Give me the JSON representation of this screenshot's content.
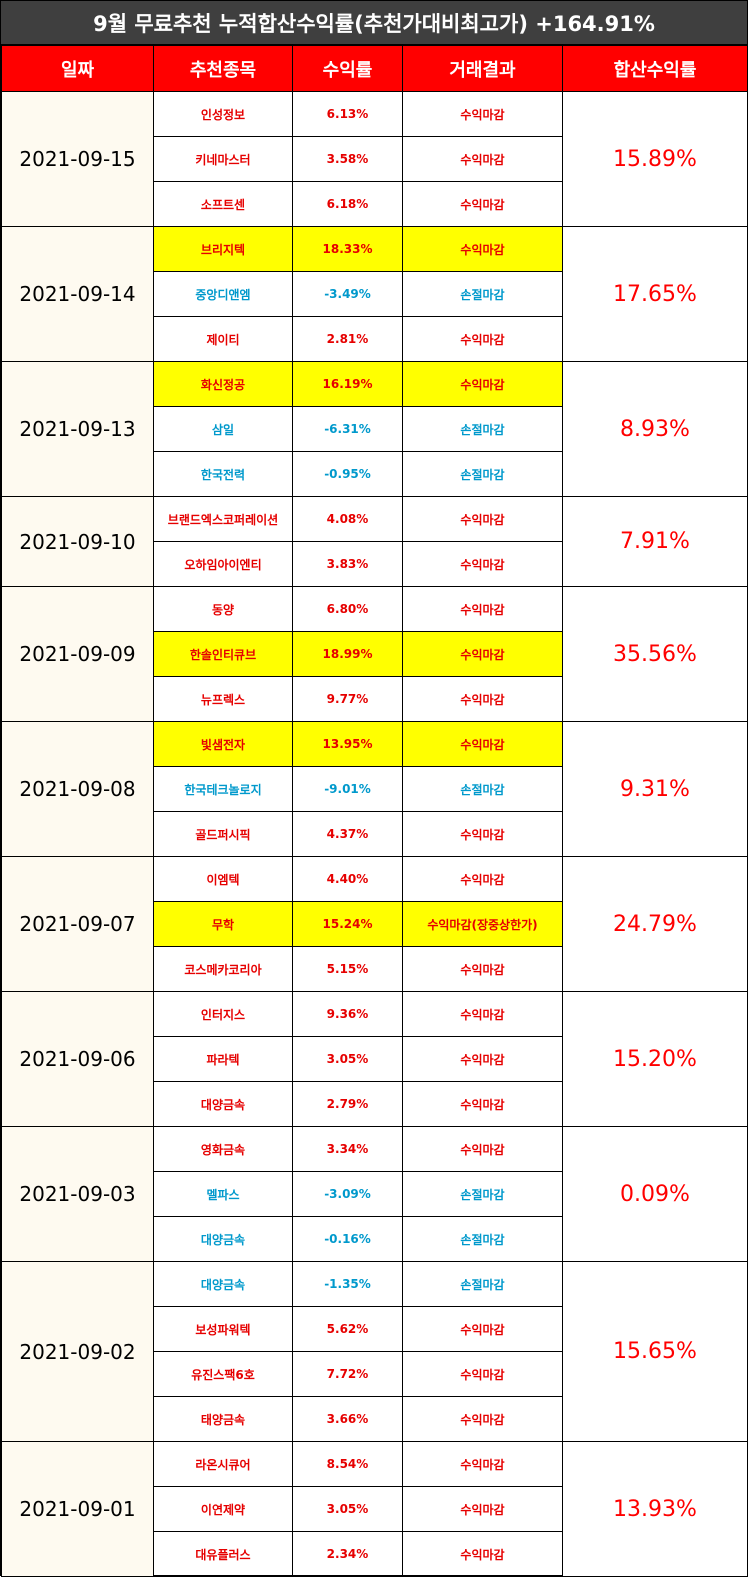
{
  "title": "9월 무료추천 누적합산수익률(추천가대비최고가) +164.91%",
  "headers": [
    "일짜",
    "추천종목",
    "수익률",
    "거래결과",
    "합산수익률"
  ],
  "colors": {
    "title_bg": "#3f3f3f",
    "header_bg": "#ff0000",
    "highlight": "#ffff00",
    "profit": "#e60000",
    "loss": "#0099cc",
    "date_bg": "#fefaf0"
  },
  "groups": [
    {
      "date": "2021-09-15",
      "total": "15.89%",
      "rows": [
        {
          "stock": "인성정보",
          "return": "6.13%",
          "result": "수익마감",
          "type": "pos",
          "highlight": false
        },
        {
          "stock": "키네마스터",
          "return": "3.58%",
          "result": "수익마감",
          "type": "pos",
          "highlight": false
        },
        {
          "stock": "소프트센",
          "return": "6.18%",
          "result": "수익마감",
          "type": "pos",
          "highlight": false
        }
      ]
    },
    {
      "date": "2021-09-14",
      "total": "17.65%",
      "rows": [
        {
          "stock": "브리지텍",
          "return": "18.33%",
          "result": "수익마감",
          "type": "pos",
          "highlight": true
        },
        {
          "stock": "중앙디앤엠",
          "return": "-3.49%",
          "result": "손절마감",
          "type": "neg",
          "highlight": false
        },
        {
          "stock": "제이티",
          "return": "2.81%",
          "result": "수익마감",
          "type": "pos",
          "highlight": false
        }
      ]
    },
    {
      "date": "2021-09-13",
      "total": "8.93%",
      "rows": [
        {
          "stock": "화신정공",
          "return": "16.19%",
          "result": "수익마감",
          "type": "pos",
          "highlight": true
        },
        {
          "stock": "삼일",
          "return": "-6.31%",
          "result": "손절마감",
          "type": "neg",
          "highlight": false
        },
        {
          "stock": "한국전력",
          "return": "-0.95%",
          "result": "손절마감",
          "type": "neg",
          "highlight": false
        }
      ]
    },
    {
      "date": "2021-09-10",
      "total": "7.91%",
      "rows": [
        {
          "stock": "브랜드엑스코퍼레이션",
          "return": "4.08%",
          "result": "수익마감",
          "type": "pos",
          "highlight": false
        },
        {
          "stock": "오하임아이엔티",
          "return": "3.83%",
          "result": "수익마감",
          "type": "pos",
          "highlight": false
        }
      ]
    },
    {
      "date": "2021-09-09",
      "total": "35.56%",
      "rows": [
        {
          "stock": "동양",
          "return": "6.80%",
          "result": "수익마감",
          "type": "pos",
          "highlight": false
        },
        {
          "stock": "한솔인티큐브",
          "return": "18.99%",
          "result": "수익마감",
          "type": "pos",
          "highlight": true
        },
        {
          "stock": "뉴프렉스",
          "return": "9.77%",
          "result": "수익마감",
          "type": "pos",
          "highlight": false
        }
      ]
    },
    {
      "date": "2021-09-08",
      "total": "9.31%",
      "rows": [
        {
          "stock": "빛샘전자",
          "return": "13.95%",
          "result": "수익마감",
          "type": "pos",
          "highlight": true
        },
        {
          "stock": "한국테크놀로지",
          "return": "-9.01%",
          "result": "손절마감",
          "type": "neg",
          "highlight": false
        },
        {
          "stock": "골드퍼시픽",
          "return": "4.37%",
          "result": "수익마감",
          "type": "pos",
          "highlight": false
        }
      ]
    },
    {
      "date": "2021-09-07",
      "total": "24.79%",
      "rows": [
        {
          "stock": "이엠텍",
          "return": "4.40%",
          "result": "수익마감",
          "type": "pos",
          "highlight": false
        },
        {
          "stock": "무학",
          "return": "15.24%",
          "result": "수익마감(장중상한가)",
          "type": "pos",
          "highlight": true
        },
        {
          "stock": "코스메카코리아",
          "return": "5.15%",
          "result": "수익마감",
          "type": "pos",
          "highlight": false
        }
      ]
    },
    {
      "date": "2021-09-06",
      "total": "15.20%",
      "rows": [
        {
          "stock": "인터지스",
          "return": "9.36%",
          "result": "수익마감",
          "type": "pos",
          "highlight": false
        },
        {
          "stock": "파라텍",
          "return": "3.05%",
          "result": "수익마감",
          "type": "pos",
          "highlight": false
        },
        {
          "stock": "대양금속",
          "return": "2.79%",
          "result": "수익마감",
          "type": "pos",
          "highlight": false
        }
      ]
    },
    {
      "date": "2021-09-03",
      "total": "0.09%",
      "rows": [
        {
          "stock": "영화금속",
          "return": "3.34%",
          "result": "수익마감",
          "type": "pos",
          "highlight": false
        },
        {
          "stock": "멜파스",
          "return": "-3.09%",
          "result": "손절마감",
          "type": "neg",
          "highlight": false
        },
        {
          "stock": "대양금속",
          "return": "-0.16%",
          "result": "손절마감",
          "type": "neg",
          "highlight": false
        }
      ]
    },
    {
      "date": "2021-09-02",
      "total": "15.65%",
      "rows": [
        {
          "stock": "대양금속",
          "return": "-1.35%",
          "result": "손절마감",
          "type": "neg",
          "highlight": false
        },
        {
          "stock": "보성파워텍",
          "return": "5.62%",
          "result": "수익마감",
          "type": "pos",
          "highlight": false
        },
        {
          "stock": "유진스팩6호",
          "return": "7.72%",
          "result": "수익마감",
          "type": "pos",
          "highlight": false
        },
        {
          "stock": "태양금속",
          "return": "3.66%",
          "result": "수익마감",
          "type": "pos",
          "highlight": false
        }
      ]
    },
    {
      "date": "2021-09-01",
      "total": "13.93%",
      "rows": [
        {
          "stock": "라온시큐어",
          "return": "8.54%",
          "result": "수익마감",
          "type": "pos",
          "highlight": false
        },
        {
          "stock": "이연제약",
          "return": "3.05%",
          "result": "수익마감",
          "type": "pos",
          "highlight": false
        },
        {
          "stock": "대유플러스",
          "return": "2.34%",
          "result": "수익마감",
          "type": "pos",
          "highlight": false
        }
      ]
    }
  ]
}
